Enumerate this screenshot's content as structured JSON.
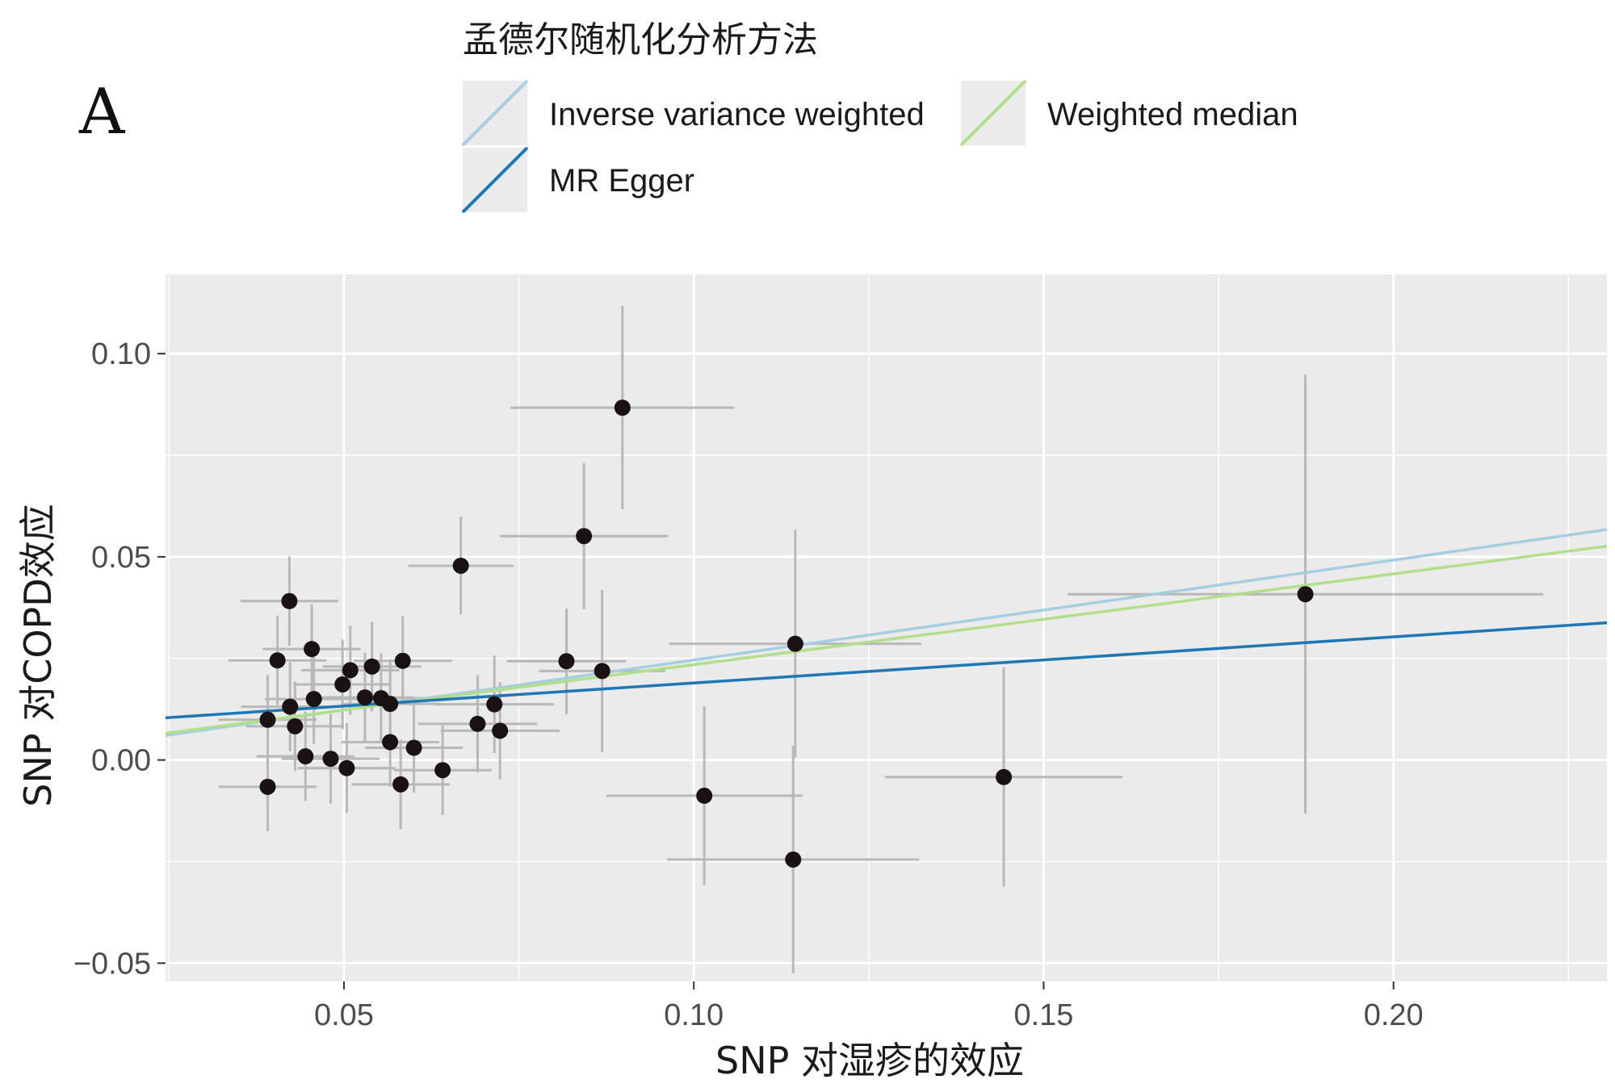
{
  "panel_label": "A",
  "legend": {
    "title": "孟德尔随机化分析方法",
    "items": [
      {
        "label": "Inverse variance weighted",
        "color": "#a6cee3"
      },
      {
        "label": "Weighted median",
        "color": "#b2df8a"
      },
      {
        "label": "MR Egger",
        "color": "#1f78b4"
      }
    ]
  },
  "colors": {
    "panel_bg": "#ebebeb",
    "grid": "#ffffff",
    "point": "#1a1212",
    "errorbar": "#b8b8b8",
    "axis_text": "#4d4d4d"
  },
  "chart_data": {
    "type": "scatter",
    "xlabel": "SNP 对湿疹的效应",
    "ylabel": "SNP 对COPD效应",
    "xlim": [
      0.0245,
      0.2305
    ],
    "ylim": [
      -0.0545,
      0.1195
    ],
    "x_ticks": [
      {
        "value": 0.05,
        "label": "0.05"
      },
      {
        "value": 0.1,
        "label": "0.10"
      },
      {
        "value": 0.15,
        "label": "0.15"
      },
      {
        "value": 0.2,
        "label": "0.20"
      }
    ],
    "y_ticks": [
      {
        "value": 0.1,
        "label": "0.10"
      },
      {
        "value": 0.05,
        "label": "0.05"
      },
      {
        "value": 0.0,
        "label": "0.00"
      },
      {
        "value": -0.05,
        "label": "−0.05"
      }
    ],
    "grid": true,
    "lines": [
      {
        "name": "Inverse variance weighted",
        "color": "#a6cee3",
        "intercept": 0.0,
        "slope": 0.246
      },
      {
        "name": "Weighted median",
        "color": "#b2df8a",
        "intercept": 0.0011,
        "slope": 0.2235
      },
      {
        "name": "MR Egger",
        "color": "#1f78b4",
        "intercept": 0.0076,
        "slope": 0.1135
      }
    ],
    "points": [
      {
        "x": 0.0898,
        "y": 0.0867,
        "xerr": 0.016,
        "yerr": 0.025
      },
      {
        "x": 0.0843,
        "y": 0.0551,
        "xerr": 0.012,
        "yerr": 0.018
      },
      {
        "x": 0.0667,
        "y": 0.0478,
        "xerr": 0.0075,
        "yerr": 0.012
      },
      {
        "x": 0.0422,
        "y": 0.0391,
        "xerr": 0.007,
        "yerr": 0.011
      },
      {
        "x": 0.0454,
        "y": 0.0273,
        "xerr": 0.007,
        "yerr": 0.011
      },
      {
        "x": 0.0405,
        "y": 0.0245,
        "xerr": 0.007,
        "yerr": 0.011
      },
      {
        "x": 0.0509,
        "y": 0.0221,
        "xerr": 0.007,
        "yerr": 0.011
      },
      {
        "x": 0.054,
        "y": 0.023,
        "xerr": 0.007,
        "yerr": 0.011
      },
      {
        "x": 0.0584,
        "y": 0.0244,
        "xerr": 0.007,
        "yerr": 0.011
      },
      {
        "x": 0.0498,
        "y": 0.0186,
        "xerr": 0.007,
        "yerr": 0.011
      },
      {
        "x": 0.0457,
        "y": 0.015,
        "xerr": 0.007,
        "yerr": 0.011
      },
      {
        "x": 0.053,
        "y": 0.0154,
        "xerr": 0.007,
        "yerr": 0.011
      },
      {
        "x": 0.0553,
        "y": 0.0152,
        "xerr": 0.007,
        "yerr": 0.011
      },
      {
        "x": 0.0566,
        "y": 0.0138,
        "xerr": 0.007,
        "yerr": 0.011
      },
      {
        "x": 0.0423,
        "y": 0.0131,
        "xerr": 0.007,
        "yerr": 0.011
      },
      {
        "x": 0.0391,
        "y": 0.0099,
        "xerr": 0.007,
        "yerr": 0.011
      },
      {
        "x": 0.043,
        "y": 0.0083,
        "xerr": 0.007,
        "yerr": 0.011
      },
      {
        "x": 0.0566,
        "y": 0.0044,
        "xerr": 0.007,
        "yerr": 0.011
      },
      {
        "x": 0.06,
        "y": 0.003,
        "xerr": 0.007,
        "yerr": 0.011
      },
      {
        "x": 0.0445,
        "y": 0.0009,
        "xerr": 0.007,
        "yerr": 0.011
      },
      {
        "x": 0.0481,
        "y": 0.0003,
        "xerr": 0.007,
        "yerr": 0.011
      },
      {
        "x": 0.0504,
        "y": -0.002,
        "xerr": 0.007,
        "yerr": 0.011
      },
      {
        "x": 0.0641,
        "y": -0.0025,
        "xerr": 0.007,
        "yerr": 0.011
      },
      {
        "x": 0.0581,
        "y": -0.006,
        "xerr": 0.007,
        "yerr": 0.011
      },
      {
        "x": 0.0391,
        "y": -0.0066,
        "xerr": 0.007,
        "yerr": 0.011
      },
      {
        "x": 0.0691,
        "y": 0.0089,
        "xerr": 0.0085,
        "yerr": 0.012
      },
      {
        "x": 0.0715,
        "y": 0.0137,
        "xerr": 0.0085,
        "yerr": 0.012
      },
      {
        "x": 0.0723,
        "y": 0.0072,
        "xerr": 0.0085,
        "yerr": 0.012
      },
      {
        "x": 0.0818,
        "y": 0.0243,
        "xerr": 0.0085,
        "yerr": 0.013
      },
      {
        "x": 0.0869,
        "y": 0.0219,
        "xerr": 0.009,
        "yerr": 0.02
      },
      {
        "x": 0.1145,
        "y": 0.0286,
        "xerr": 0.018,
        "yerr": 0.028
      },
      {
        "x": 0.1015,
        "y": -0.0088,
        "xerr": 0.014,
        "yerr": 0.022
      },
      {
        "x": 0.1142,
        "y": -0.0245,
        "xerr": 0.018,
        "yerr": 0.028
      },
      {
        "x": 0.1443,
        "y": -0.0042,
        "xerr": 0.017,
        "yerr": 0.027
      },
      {
        "x": 0.1874,
        "y": 0.0408,
        "xerr": 0.034,
        "yerr": 0.054
      }
    ]
  }
}
